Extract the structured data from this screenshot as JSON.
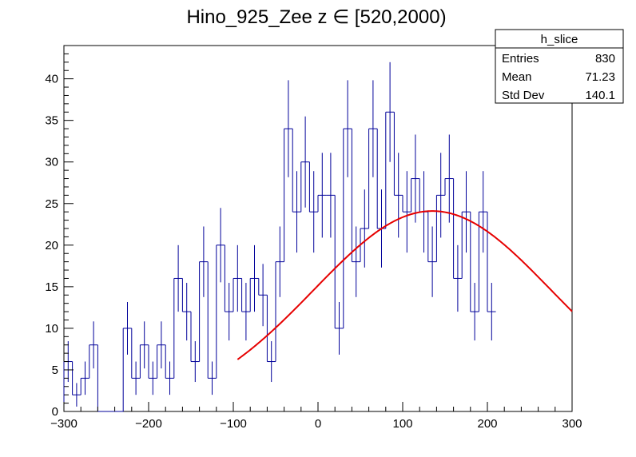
{
  "chart_data": {
    "type": "histogram",
    "title": "Hino_925_Zee z  ∈ [520,2000)",
    "xlim": [
      -300,
      300
    ],
    "ylim": [
      0,
      44
    ],
    "x_ticks": [
      -300,
      -200,
      -100,
      0,
      100,
      200,
      300
    ],
    "x_tick_labels": [
      "−300",
      "−200",
      "−100",
      "0",
      "100",
      "200",
      "300"
    ],
    "y_ticks": [
      0,
      5,
      10,
      15,
      20,
      25,
      30,
      35,
      40
    ],
    "y_tick_labels": [
      "0",
      "5",
      "10",
      "15",
      "20",
      "25",
      "30",
      "35",
      "40"
    ],
    "bin_width": 10,
    "bins": [
      {
        "x0": -300,
        "count": 6
      },
      {
        "x0": -290,
        "count": 2
      },
      {
        "x0": -280,
        "count": 4
      },
      {
        "x0": -270,
        "count": 8
      },
      {
        "x0": -260,
        "count": 0
      },
      {
        "x0": -250,
        "count": 0
      },
      {
        "x0": -240,
        "count": 0
      },
      {
        "x0": -230,
        "count": 10
      },
      {
        "x0": -220,
        "count": 4
      },
      {
        "x0": -210,
        "count": 8
      },
      {
        "x0": -200,
        "count": 4
      },
      {
        "x0": -190,
        "count": 8
      },
      {
        "x0": -180,
        "count": 4
      },
      {
        "x0": -170,
        "count": 16
      },
      {
        "x0": -160,
        "count": 12
      },
      {
        "x0": -150,
        "count": 6
      },
      {
        "x0": -140,
        "count": 18
      },
      {
        "x0": -130,
        "count": 4
      },
      {
        "x0": -120,
        "count": 20
      },
      {
        "x0": -110,
        "count": 12
      },
      {
        "x0": -100,
        "count": 16
      },
      {
        "x0": -90,
        "count": 12
      },
      {
        "x0": -80,
        "count": 16
      },
      {
        "x0": -70,
        "count": 14
      },
      {
        "x0": -60,
        "count": 6
      },
      {
        "x0": -50,
        "count": 18
      },
      {
        "x0": -40,
        "count": 34
      },
      {
        "x0": -30,
        "count": 24
      },
      {
        "x0": -20,
        "count": 30
      },
      {
        "x0": -10,
        "count": 24
      },
      {
        "x0": 0,
        "count": 26
      },
      {
        "x0": 10,
        "count": 26
      },
      {
        "x0": 20,
        "count": 10
      },
      {
        "x0": 30,
        "count": 34
      },
      {
        "x0": 40,
        "count": 18
      },
      {
        "x0": 50,
        "count": 22
      },
      {
        "x0": 60,
        "count": 34
      },
      {
        "x0": 70,
        "count": 22
      },
      {
        "x0": 80,
        "count": 36
      },
      {
        "x0": 90,
        "count": 26
      },
      {
        "x0": 100,
        "count": 24
      },
      {
        "x0": 110,
        "count": 28
      },
      {
        "x0": 120,
        "count": 24
      },
      {
        "x0": 130,
        "count": 18
      },
      {
        "x0": 140,
        "count": 26
      },
      {
        "x0": 150,
        "count": 28
      },
      {
        "x0": 160,
        "count": 16
      },
      {
        "x0": 170,
        "count": 24
      },
      {
        "x0": 180,
        "count": 12
      },
      {
        "x0": 190,
        "count": 24
      },
      {
        "x0": 200,
        "count": 12
      }
    ],
    "fit": {
      "name": "gaussian",
      "amplitude": 24.1,
      "mean": 135,
      "sigma": 140,
      "x_range": [
        -95,
        300
      ],
      "color": "#e60000"
    },
    "colors": {
      "histogram": "#000099",
      "error_bars": "#000099",
      "axis": "#000000"
    },
    "stats_box": {
      "name": "h_slice",
      "entries_label": "Entries",
      "entries_value": "830",
      "mean_label": "Mean",
      "mean_value": "71.23",
      "stddev_label": "Std Dev",
      "stddev_value": "140.1"
    }
  }
}
